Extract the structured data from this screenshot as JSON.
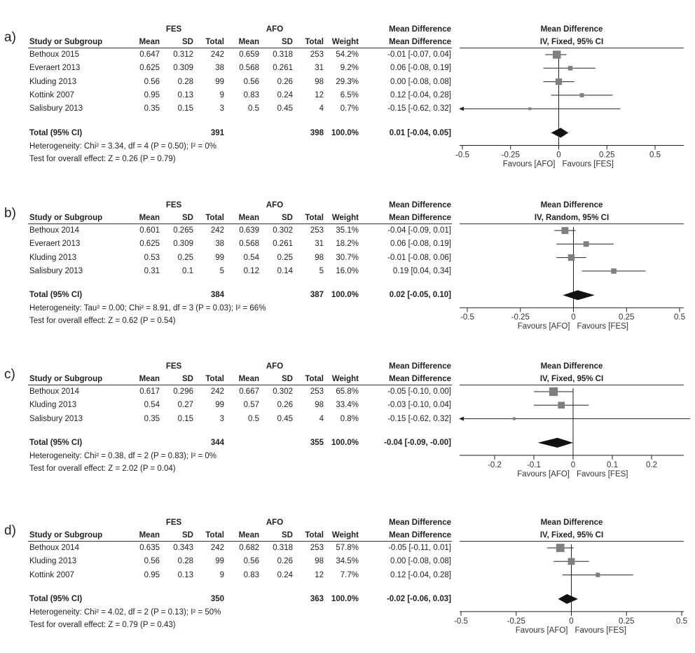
{
  "chart_data": [
    {
      "type": "forest",
      "label": "a)",
      "groups": {
        "experimental": "FES",
        "control": "AFO"
      },
      "columns": [
        "Study or Subgroup",
        "Mean",
        "SD",
        "Total",
        "Mean",
        "SD",
        "Total",
        "Weight",
        "Mean Difference",
        "IV, Fixed, 95% CI"
      ],
      "effect_header": "Mean Difference",
      "method": "IV, Fixed, 95% CI",
      "studies": [
        {
          "name": "Bethoux 2015",
          "fes_mean": "0.647",
          "fes_sd": "0.312",
          "fes_total": "242",
          "afo_mean": "0.659",
          "afo_sd": "0.318",
          "afo_total": "253",
          "weight": "54.2%",
          "ci_text": "-0.01 [-0.07, 0.04]",
          "md": -0.01,
          "lo": -0.07,
          "hi": 0.04,
          "w": 54.2
        },
        {
          "name": "Everaert 2013",
          "fes_mean": "0.625",
          "fes_sd": "0.309",
          "fes_total": "38",
          "afo_mean": "0.568",
          "afo_sd": "0.261",
          "afo_total": "31",
          "weight": "9.2%",
          "ci_text": "0.06 [-0.08, 0.19]",
          "md": 0.06,
          "lo": -0.08,
          "hi": 0.19,
          "w": 9.2
        },
        {
          "name": "Kluding 2013",
          "fes_mean": "0.56",
          "fes_sd": "0.28",
          "fes_total": "99",
          "afo_mean": "0.56",
          "afo_sd": "0.26",
          "afo_total": "98",
          "weight": "29.3%",
          "ci_text": "0.00 [-0.08, 0.08]",
          "md": 0.0,
          "lo": -0.08,
          "hi": 0.08,
          "w": 29.3
        },
        {
          "name": "Kottink 2007",
          "fes_mean": "0.95",
          "fes_sd": "0.13",
          "fes_total": "9",
          "afo_mean": "0.83",
          "afo_sd": "0.24",
          "afo_total": "12",
          "weight": "6.5%",
          "ci_text": "0.12 [-0.04, 0.28]",
          "md": 0.12,
          "lo": -0.04,
          "hi": 0.28,
          "w": 6.5
        },
        {
          "name": "Salisbury 2013",
          "fes_mean": "0.35",
          "fes_sd": "0.15",
          "fes_total": "3",
          "afo_mean": "0.5",
          "afo_sd": "0.45",
          "afo_total": "4",
          "weight": "0.7%",
          "ci_text": "-0.15 [-0.62, 0.32]",
          "md": -0.15,
          "lo": -0.62,
          "hi": 0.32,
          "w": 0.7
        }
      ],
      "total": {
        "label": "Total (95% CI)",
        "fes_total": "391",
        "afo_total": "398",
        "weight": "100.0%",
        "ci_text": "0.01 [-0.04, 0.05]",
        "md": 0.01,
        "lo": -0.04,
        "hi": 0.05
      },
      "heterogeneity": "Heterogeneity: Chi² = 3.34, df = 4 (P = 0.50); I² = 0%",
      "overall_effect": "Test for overall effect: Z = 0.26 (P = 0.79)",
      "axis": {
        "xlim": [
          -0.5,
          0.5
        ],
        "ticks": [
          -0.5,
          -0.25,
          0,
          0.25,
          0.5
        ],
        "tick_labels": [
          "-0.5",
          "-0.25",
          "0",
          "0.25",
          "0.5"
        ],
        "favours_left": "Favours [AFO]",
        "favours_right": "Favours [FES]"
      }
    },
    {
      "type": "forest",
      "label": "b)",
      "groups": {
        "experimental": "FES",
        "control": "AFO"
      },
      "columns": [
        "Study or Subgroup",
        "Mean",
        "SD",
        "Total",
        "Mean",
        "SD",
        "Total",
        "Weight",
        "Mean Difference",
        "IV, Random, 95% CI"
      ],
      "effect_header": "Mean Difference",
      "method": "IV, Random, 95% CI",
      "studies": [
        {
          "name": "Bethoux 2014",
          "fes_mean": "0.601",
          "fes_sd": "0.265",
          "fes_total": "242",
          "afo_mean": "0.639",
          "afo_sd": "0.302",
          "afo_total": "253",
          "weight": "35.1%",
          "ci_text": "-0.04 [-0.09, 0.01]",
          "md": -0.04,
          "lo": -0.09,
          "hi": 0.01,
          "w": 35.1
        },
        {
          "name": "Everaert 2013",
          "fes_mean": "0.625",
          "fes_sd": "0.309",
          "fes_total": "38",
          "afo_mean": "0.568",
          "afo_sd": "0.261",
          "afo_total": "31",
          "weight": "18.2%",
          "ci_text": "0.06 [-0.08, 0.19]",
          "md": 0.06,
          "lo": -0.08,
          "hi": 0.19,
          "w": 18.2
        },
        {
          "name": "Kluding 2013",
          "fes_mean": "0.53",
          "fes_sd": "0.25",
          "fes_total": "99",
          "afo_mean": "0.54",
          "afo_sd": "0.25",
          "afo_total": "98",
          "weight": "30.7%",
          "ci_text": "-0.01 [-0.08, 0.06]",
          "md": -0.01,
          "lo": -0.08,
          "hi": 0.06,
          "w": 30.7
        },
        {
          "name": "Salisbury 2013",
          "fes_mean": "0.31",
          "fes_sd": "0.1",
          "fes_total": "5",
          "afo_mean": "0.12",
          "afo_sd": "0.14",
          "afo_total": "5",
          "weight": "16.0%",
          "ci_text": "0.19 [0.04, 0.34]",
          "md": 0.19,
          "lo": 0.04,
          "hi": 0.34,
          "w": 16.0
        }
      ],
      "total": {
        "label": "Total (95% CI)",
        "fes_total": "384",
        "afo_total": "387",
        "weight": "100.0%",
        "ci_text": "0.02 [-0.05, 0.10]",
        "md": 0.02,
        "lo": -0.05,
        "hi": 0.1
      },
      "heterogeneity": "Heterogeneity: Tau² = 0.00; Chi² = 8.91, df = 3 (P = 0.03); I² = 66%",
      "overall_effect": "Test for overall effect: Z = 0.62 (P = 0.54)",
      "axis": {
        "xlim": [
          -0.5,
          0.5
        ],
        "ticks": [
          -0.5,
          -0.25,
          0,
          0.25,
          0.5
        ],
        "tick_labels": [
          "-0.5",
          "-0.25",
          "0",
          "0.25",
          "0.5"
        ],
        "favours_left": "Favours [AFO]",
        "favours_right": "Favours [FES]"
      }
    },
    {
      "type": "forest",
      "label": "c)",
      "groups": {
        "experimental": "FES",
        "control": "AFO"
      },
      "columns": [
        "Study or Subgroup",
        "Mean",
        "SD",
        "Total",
        "Mean",
        "SD",
        "Total",
        "Weight",
        "Mean Difference",
        "IV, Fixed, 95% CI"
      ],
      "effect_header": "Mean Difference",
      "method": "IV, Fixed, 95% CI",
      "studies": [
        {
          "name": "Bethoux 2014",
          "fes_mean": "0.617",
          "fes_sd": "0.296",
          "fes_total": "242",
          "afo_mean": "0.667",
          "afo_sd": "0.302",
          "afo_total": "253",
          "weight": "65.8%",
          "ci_text": "-0.05 [-0.10, 0.00]",
          "md": -0.05,
          "lo": -0.1,
          "hi": 0.0,
          "w": 65.8
        },
        {
          "name": "Kluding 2013",
          "fes_mean": "0.54",
          "fes_sd": "0.27",
          "fes_total": "99",
          "afo_mean": "0.57",
          "afo_sd": "0.26",
          "afo_total": "98",
          "weight": "33.4%",
          "ci_text": "-0.03 [-0.10, 0.04]",
          "md": -0.03,
          "lo": -0.1,
          "hi": 0.04,
          "w": 33.4
        },
        {
          "name": "Salisbury 2013",
          "fes_mean": "0.35",
          "fes_sd": "0.15",
          "fes_total": "3",
          "afo_mean": "0.5",
          "afo_sd": "0.45",
          "afo_total": "4",
          "weight": "0.8%",
          "ci_text": "-0.15 [-0.62, 0.32]",
          "md": -0.15,
          "lo": -0.62,
          "hi": 0.32,
          "w": 0.8
        }
      ],
      "total": {
        "label": "Total (95% CI)",
        "fes_total": "344",
        "afo_total": "355",
        "weight": "100.0%",
        "ci_text": "-0.04 [-0.09, -0.00]",
        "md": -0.04,
        "lo": -0.09,
        "hi": 0.0
      },
      "heterogeneity": "Heterogeneity: Chi² = 0.38, df = 2 (P = 0.83); I² = 0%",
      "overall_effect": "Test for overall effect: Z = 2.02 (P = 0.04)",
      "axis": {
        "xlim": [
          -0.2,
          0.2
        ],
        "ticks": [
          -0.2,
          -0.1,
          0,
          0.1,
          0.2
        ],
        "tick_labels": [
          "-0.2",
          "-0.1",
          "0",
          "0.1",
          "0.2"
        ],
        "favours_left": "Favours [AFO]",
        "favours_right": "Favours [FES]"
      }
    },
    {
      "type": "forest",
      "label": "d)",
      "groups": {
        "experimental": "FES",
        "control": "AFO"
      },
      "columns": [
        "Study or Subgroup",
        "Mean",
        "SD",
        "Total",
        "Mean",
        "SD",
        "Total",
        "Weight",
        "Mean Difference",
        "IV, Fixed, 95% CI"
      ],
      "effect_header": "Mean Difference",
      "method": "IV, Fixed, 95% CI",
      "studies": [
        {
          "name": "Bethoux 2014",
          "fes_mean": "0.635",
          "fes_sd": "0.343",
          "fes_total": "242",
          "afo_mean": "0.682",
          "afo_sd": "0.318",
          "afo_total": "253",
          "weight": "57.8%",
          "ci_text": "-0.05 [-0.11, 0.01]",
          "md": -0.05,
          "lo": -0.11,
          "hi": 0.01,
          "w": 57.8
        },
        {
          "name": "Kluding 2013",
          "fes_mean": "0.56",
          "fes_sd": "0.28",
          "fes_total": "99",
          "afo_mean": "0.56",
          "afo_sd": "0.26",
          "afo_total": "98",
          "weight": "34.5%",
          "ci_text": "0.00 [-0.08, 0.08]",
          "md": 0.0,
          "lo": -0.08,
          "hi": 0.08,
          "w": 34.5
        },
        {
          "name": "Kottink 2007",
          "fes_mean": "0.95",
          "fes_sd": "0.13",
          "fes_total": "9",
          "afo_mean": "0.83",
          "afo_sd": "0.24",
          "afo_total": "12",
          "weight": "7.7%",
          "ci_text": "0.12 [-0.04, 0.28]",
          "md": 0.12,
          "lo": -0.04,
          "hi": 0.28,
          "w": 7.7
        }
      ],
      "total": {
        "label": "Total (95% CI)",
        "fes_total": "350",
        "afo_total": "363",
        "weight": "100.0%",
        "ci_text": "-0.02 [-0.06, 0.03]",
        "md": -0.02,
        "lo": -0.06,
        "hi": 0.03
      },
      "heterogeneity": "Heterogeneity: Chi² = 4.02, df = 2 (P = 0.13); I² = 50%",
      "overall_effect": "Test for overall effect: Z = 0.79 (P = 0.43)",
      "axis": {
        "xlim": [
          -0.5,
          0.5
        ],
        "ticks": [
          -0.5,
          -0.25,
          0,
          0.25,
          0.5
        ],
        "tick_labels": [
          "-0.5",
          "-0.25",
          "0",
          "0.25",
          "0.5"
        ],
        "favours_left": "Favours [AFO]",
        "favours_right": "Favours [FES]"
      }
    }
  ]
}
